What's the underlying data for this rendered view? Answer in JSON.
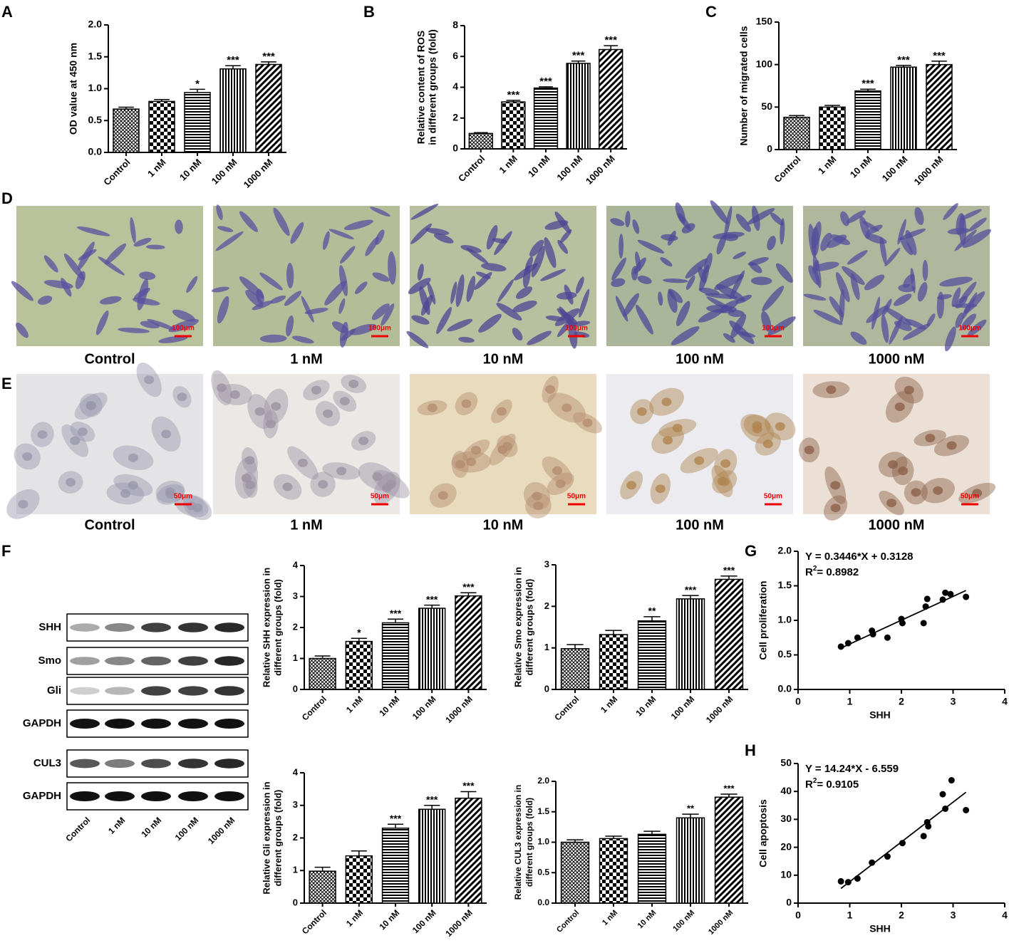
{
  "chart_data": [
    {
      "type": "bar",
      "panel": "A",
      "ylabel": "OD value at 450 nm",
      "categories": [
        "Control",
        "1 nM",
        "10 nM",
        "100 nM",
        "1000 nM"
      ],
      "values": [
        0.68,
        0.8,
        0.94,
        1.31,
        1.38
      ],
      "errors": [
        0.03,
        0.03,
        0.05,
        0.05,
        0.04
      ],
      "stars": [
        null,
        null,
        "*",
        "***",
        "***"
      ],
      "ylim": [
        0,
        2.0
      ],
      "yticks": [
        {
          "value": 0,
          "label": "0.0"
        },
        {
          "value": 0.5,
          "label": "0.5"
        },
        {
          "value": 1,
          "label": "1.0"
        },
        {
          "value": 1.5,
          "label": "1.5"
        },
        {
          "value": 2,
          "label": "2.0"
        }
      ]
    },
    {
      "type": "bar",
      "panel": "B",
      "ylabel": [
        "Relative content of ROS",
        "in different groups (fold)"
      ],
      "categories": [
        "Control",
        "1 nM",
        "10 nM",
        "100 nM",
        "1000 nM"
      ],
      "values": [
        1.0,
        3.05,
        3.95,
        5.55,
        6.45
      ],
      "errors": [
        0.05,
        0.1,
        0.08,
        0.15,
        0.25
      ],
      "stars": [
        null,
        "***",
        "***",
        "***",
        "***"
      ],
      "ylim": [
        0,
        8
      ],
      "yticks": [
        0,
        2,
        4,
        6,
        8
      ]
    },
    {
      "type": "bar",
      "panel": "C",
      "ylabel": "Number of migrated cells",
      "categories": [
        "Control",
        "1 nM",
        "10 nM",
        "100 nM",
        "1000 nM"
      ],
      "values": [
        38,
        50,
        69,
        97,
        100
      ],
      "errors": [
        2,
        2,
        2,
        2,
        4
      ],
      "stars": [
        null,
        null,
        "***",
        "***",
        "***"
      ],
      "ylim": [
        0,
        150
      ],
      "yticks": [
        0,
        50,
        100,
        150
      ]
    },
    {
      "type": "bar",
      "ylabel": [
        "Relative SHH expression in",
        "different groups (fold)"
      ],
      "categories": [
        "Control",
        "1 nM",
        "10 nM",
        "100 nM",
        "1000 nM"
      ],
      "values": [
        1.0,
        1.55,
        2.15,
        2.62,
        3.02
      ],
      "errors": [
        0.08,
        0.1,
        0.12,
        0.1,
        0.1
      ],
      "stars": [
        null,
        "*",
        "***",
        "***",
        "***"
      ],
      "ylim": [
        0,
        4
      ],
      "yticks": [
        0,
        1,
        2,
        3,
        4
      ]
    },
    {
      "type": "bar",
      "ylabel": [
        "Relative Smo expression in",
        "different groups (fold)"
      ],
      "categories": [
        "Control",
        "1 nM",
        "10 nM",
        "100 nM",
        "1000 nM"
      ],
      "values": [
        0.98,
        1.32,
        1.65,
        2.18,
        2.65
      ],
      "errors": [
        0.1,
        0.1,
        0.1,
        0.08,
        0.08
      ],
      "stars": [
        null,
        null,
        "**",
        "***",
        "***"
      ],
      "ylim": [
        0,
        3
      ],
      "yticks": [
        0,
        1,
        2,
        3
      ]
    },
    {
      "type": "bar",
      "ylabel": [
        "Relative Gli expression in",
        "different groups (fold)"
      ],
      "categories": [
        "Control",
        "1 nM",
        "10 nM",
        "100 nM",
        "1000 nM"
      ],
      "values": [
        0.98,
        1.45,
        2.3,
        2.88,
        3.22
      ],
      "errors": [
        0.12,
        0.15,
        0.12,
        0.12,
        0.2
      ],
      "stars": [
        null,
        null,
        "***",
        "***",
        "***"
      ],
      "ylim": [
        0,
        4
      ],
      "yticks": [
        0,
        1,
        2,
        3,
        4
      ]
    },
    {
      "type": "bar",
      "ylabel": [
        "Relative CUL3 expression in",
        "different groups (fold)"
      ],
      "categories": [
        "Control",
        "1 nM",
        "10 nM",
        "100 nM",
        "1000 nM"
      ],
      "values": [
        1.0,
        1.06,
        1.13,
        1.4,
        1.74
      ],
      "errors": [
        0.04,
        0.04,
        0.05,
        0.06,
        0.05
      ],
      "stars": [
        null,
        null,
        null,
        "**",
        "***"
      ],
      "ylim": [
        0,
        2.0
      ],
      "yticks": [
        {
          "value": 0,
          "label": "0.0"
        },
        {
          "value": 0.5,
          "label": "0.5"
        },
        {
          "value": 1,
          "label": "1.0"
        },
        {
          "value": 1.5,
          "label": "1.5"
        },
        {
          "value": 2,
          "label": "2.0"
        }
      ]
    },
    {
      "type": "scatter",
      "panel": "G",
      "xlabel": "SHH",
      "ylabel": "Cell proliferation",
      "equation": "Y = 0.3446*X + 0.3128",
      "r_squared": {
        "symbol": "R",
        "power": "2",
        "text": "= 0.8982"
      },
      "fit": {
        "slope": 0.3446,
        "intercept": 0.3128
      },
      "x": [
        0.83,
        0.97,
        1.15,
        1.43,
        1.45,
        1.73,
        2.0,
        2.02,
        2.43,
        2.47,
        2.5,
        2.8,
        2.85,
        2.95,
        3.25
      ],
      "values": [
        0.62,
        0.67,
        0.75,
        0.85,
        0.8,
        0.75,
        1.02,
        0.96,
        0.96,
        1.2,
        1.31,
        1.3,
        1.4,
        1.38,
        1.34
      ],
      "xlim": [
        0,
        4
      ],
      "xticks": [
        0,
        1,
        2,
        3,
        4
      ],
      "ylim": [
        0,
        2.0
      ],
      "yticks": [
        {
          "value": 0,
          "label": "0.0"
        },
        {
          "value": 0.5,
          "label": "0.5"
        },
        {
          "value": 1,
          "label": "1.0"
        },
        {
          "value": 1.5,
          "label": "1.5"
        },
        {
          "value": 2,
          "label": "2.0"
        }
      ]
    },
    {
      "type": "scatter",
      "panel": "H",
      "xlabel": "SHH",
      "ylabel": "Cell apoptosis",
      "equation": "Y = 14.24*X - 6.559",
      "r_squared": {
        "symbol": "R",
        "power": "2",
        "text": "= 0.9105"
      },
      "fit": {
        "slope": 14.24,
        "intercept": -6.559
      },
      "x": [
        0.83,
        0.97,
        1.15,
        1.43,
        1.73,
        2.02,
        2.43,
        2.5,
        2.52,
        2.8,
        2.85,
        2.97,
        3.25
      ],
      "values": [
        7.8,
        7.5,
        8.8,
        14.5,
        16.7,
        21.5,
        24,
        29,
        27.5,
        39,
        33.8,
        44,
        33.3
      ],
      "xlim": [
        0,
        4
      ],
      "xticks": [
        0,
        1,
        2,
        3,
        4
      ],
      "ylim": [
        0,
        50
      ],
      "yticks": [
        0,
        10,
        20,
        30,
        40,
        50
      ]
    }
  ],
  "micrographs": [
    {
      "panel": "D",
      "scale_bar": "100μm",
      "captions": [
        "Control",
        "1 nM",
        "10 nM",
        "100 nM",
        "1000 nM"
      ]
    },
    {
      "panel": "E",
      "scale_bar": "50μm",
      "captions": [
        "Control",
        "1 nM",
        "10 nM",
        "100 nM",
        "1000 nM"
      ]
    }
  ],
  "blot": {
    "panel": "F",
    "proteins": [
      "SHH",
      "Smo",
      "Gli",
      "GAPDH",
      "CUL3",
      "GAPDH"
    ],
    "lanes": [
      "Control",
      "1 nM",
      "10 nM",
      "100 nM",
      "1000 nM"
    ]
  }
}
